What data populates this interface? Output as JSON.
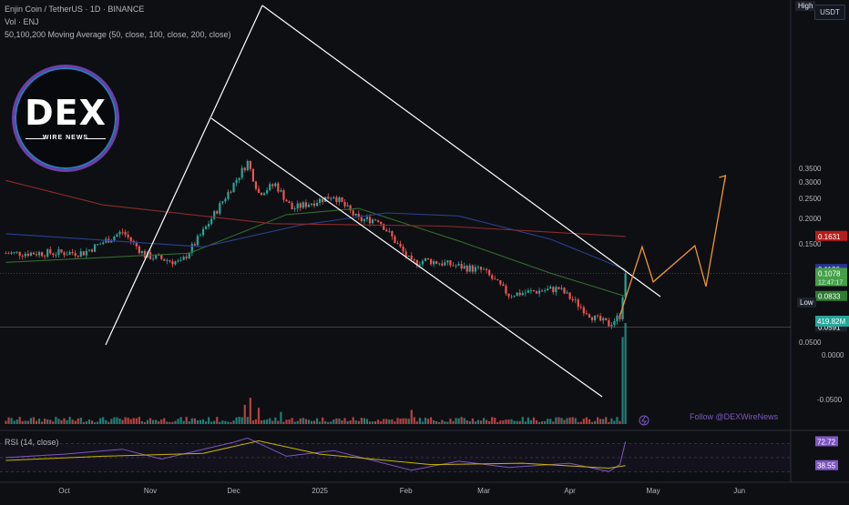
{
  "header": {
    "symbol_line": "Enjin Coin / TetherUS · 1D · BINANCE",
    "volume_line": "Vol · ENJ",
    "ma_line": "50,100,200 Moving Average (50, close, 100, close, 200, close)",
    "rsi_line": "RSI (14, close)"
  },
  "currency_badge": "USDT",
  "high_badge": "High",
  "low_badge": "Low",
  "watermark": {
    "brand": "DEX",
    "sub": "WIRE NEWS"
  },
  "follow_text": "Follow @DEXWireNews",
  "colors": {
    "background": "#0e0f13",
    "up_candle": "#26a69a",
    "down_candle": "#ef5350",
    "ma50": "#2f6b2f",
    "ma100": "#2b3f8f",
    "ma200": "#8b2a2a",
    "rsi_line": "#7e57c2",
    "rsi_ma": "#c8b400",
    "projection": "#f0962a",
    "channel": "#ffffff"
  },
  "chart_data": [
    {
      "type": "candlestick",
      "pane": "price",
      "x_ticks": [
        "Oct",
        "Nov",
        "Dec",
        "2025",
        "Feb",
        "Mar",
        "Apr",
        "May",
        "Jun"
      ],
      "y_ticks": [
        "0.3500",
        "0.3000",
        "0.2500",
        "0.2000",
        "0.1500",
        "0.0500"
      ],
      "ylim": [
        0.045,
        0.395
      ],
      "y_scale": "log",
      "price_labels": [
        {
          "label": "0.1631",
          "value": 0.1631,
          "color": "#b71c1c"
        },
        {
          "label": "0.1126",
          "value": 0.1126,
          "color": "#283593"
        },
        {
          "label": "0.1078",
          "value": 0.1078,
          "color": "#43a047",
          "extra": "12:47:17"
        },
        {
          "label": "0.0833",
          "value": 0.0833,
          "color": "#2e7d32"
        },
        {
          "label": "0.0591",
          "value": 0.0591,
          "color": "#1e222d"
        }
      ],
      "close_anchors": [
        {
          "date": "2024-09-10",
          "value": 0.135
        },
        {
          "date": "2024-10-08",
          "value": 0.136
        },
        {
          "date": "2024-10-22",
          "value": 0.172
        },
        {
          "date": "2024-10-30",
          "value": 0.132
        },
        {
          "date": "2024-11-12",
          "value": 0.121
        },
        {
          "date": "2024-11-20",
          "value": 0.172
        },
        {
          "date": "2024-12-06",
          "value": 0.375
        },
        {
          "date": "2024-12-10",
          "value": 0.265
        },
        {
          "date": "2024-12-16",
          "value": 0.292
        },
        {
          "date": "2024-12-22",
          "value": 0.222
        },
        {
          "date": "2025-01-06",
          "value": 0.258
        },
        {
          "date": "2025-01-15",
          "value": 0.196
        },
        {
          "date": "2025-01-22",
          "value": 0.198
        },
        {
          "date": "2025-02-03",
          "value": 0.121
        },
        {
          "date": "2025-02-08",
          "value": 0.125
        },
        {
          "date": "2025-03-01",
          "value": 0.111
        },
        {
          "date": "2025-03-10",
          "value": 0.085
        },
        {
          "date": "2025-03-28",
          "value": 0.091
        },
        {
          "date": "2025-04-10",
          "value": 0.065
        },
        {
          "date": "2025-04-15",
          "value": 0.061
        },
        {
          "date": "2025-04-19",
          "value": 0.067
        },
        {
          "date": "2025-04-21",
          "value": 0.1078
        }
      ],
      "moving_averages": [
        {
          "name": "MA 50",
          "color": "#2f6b2f",
          "points": [
            [
              "2024-09-10",
              0.122
            ],
            [
              "2024-11-15",
              0.135
            ],
            [
              "2024-12-20",
              0.208
            ],
            [
              "2025-01-15",
              0.223
            ],
            [
              "2025-02-20",
              0.155
            ],
            [
              "2025-03-25",
              0.108
            ],
            [
              "2025-04-21",
              0.0833
            ]
          ]
        },
        {
          "name": "MA 100",
          "color": "#2b3f8f",
          "points": [
            [
              "2024-09-10",
              0.168
            ],
            [
              "2024-11-20",
              0.145
            ],
            [
              "2024-12-25",
              0.185
            ],
            [
              "2025-01-25",
              0.212
            ],
            [
              "2025-02-20",
              0.205
            ],
            [
              "2025-03-25",
              0.158
            ],
            [
              "2025-04-21",
              0.1126
            ]
          ]
        },
        {
          "name": "MA 200",
          "color": "#8b2a2a",
          "points": [
            [
              "2024-09-10",
              0.305
            ],
            [
              "2024-10-15",
              0.232
            ],
            [
              "2024-12-15",
              0.188
            ],
            [
              "2025-02-15",
              0.183
            ],
            [
              "2025-04-21",
              0.1631
            ]
          ]
        }
      ],
      "projection": [
        [
          "2025-04-19",
          0.067
        ],
        [
          "2025-04-27",
          0.145
        ],
        [
          "2025-05-01",
          0.098
        ],
        [
          "2025-05-16",
          0.147
        ],
        [
          "2025-05-20",
          0.093
        ],
        [
          "2025-05-27",
          0.322
        ]
      ],
      "projection_arrow_target": [
        "2025-05-27",
        0.322
      ]
    },
    {
      "type": "bar",
      "pane": "volume",
      "y_ticks": [
        "419.82M",
        "0.0000",
        "-0.0500"
      ],
      "last_value": "419.82M",
      "typical_value_relative": 0.06,
      "spikes": [
        {
          "date": "2024-12-07",
          "relative": 0.26
        },
        {
          "date": "2024-12-05",
          "relative": 0.19
        },
        {
          "date": "2024-12-10",
          "relative": 0.16
        },
        {
          "date": "2024-12-18",
          "relative": 0.12
        },
        {
          "date": "2025-02-03",
          "relative": 0.14
        },
        {
          "date": "2025-04-20",
          "relative": 0.86
        },
        {
          "date": "2025-04-21",
          "relative": 1.0
        }
      ]
    },
    {
      "type": "line",
      "pane": "rsi",
      "labels": [
        {
          "label": "72.72",
          "value": 72.72
        },
        {
          "label": "38.55",
          "value": 38.55
        }
      ],
      "ylim": [
        20,
        85
      ],
      "levels": [
        70,
        50,
        30
      ],
      "points": [
        [
          "2024-09-10",
          50
        ],
        [
          "2024-10-01",
          55
        ],
        [
          "2024-10-22",
          62
        ],
        [
          "2024-11-05",
          48
        ],
        [
          "2024-12-01",
          72
        ],
        [
          "2024-12-06",
          78
        ],
        [
          "2024-12-20",
          52
        ],
        [
          "2025-01-06",
          60
        ],
        [
          "2025-02-03",
          32
        ],
        [
          "2025-02-20",
          45
        ],
        [
          "2025-03-10",
          36
        ],
        [
          "2025-04-01",
          42
        ],
        [
          "2025-04-15",
          30
        ],
        [
          "2025-04-19",
          40
        ],
        [
          "2025-04-21",
          72.72
        ]
      ],
      "ma_points": [
        [
          "2024-09-10",
          46
        ],
        [
          "2024-10-15",
          52
        ],
        [
          "2024-11-20",
          56
        ],
        [
          "2024-12-10",
          74
        ],
        [
          "2025-01-01",
          55
        ],
        [
          "2025-02-10",
          40
        ],
        [
          "2025-03-15",
          42
        ],
        [
          "2025-04-15",
          35
        ],
        [
          "2025-04-21",
          38.55
        ]
      ]
    }
  ]
}
